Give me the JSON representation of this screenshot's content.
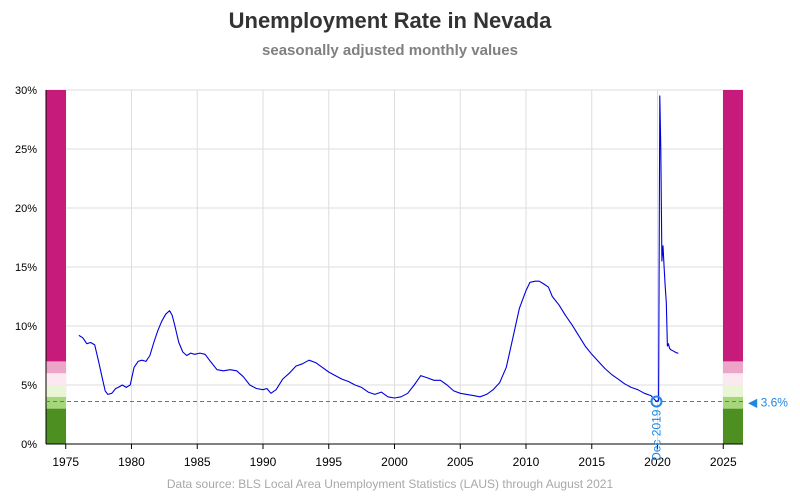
{
  "chart_data": {
    "type": "line",
    "title": "Unemployment Rate in Nevada",
    "subtitle": "seasonally adjusted monthly values",
    "source": "Data source: BLS Local Area Unemployment Statistics (LAUS) through August 2021",
    "xlabel": "",
    "ylabel": "",
    "xlim": [
      1973.5,
      2026.5
    ],
    "ylim": [
      0,
      30
    ],
    "x_ticks": [
      1975,
      1980,
      1985,
      1990,
      1995,
      2000,
      2005,
      2010,
      2015,
      2020,
      2025
    ],
    "y_ticks": [
      0,
      5,
      10,
      15,
      20,
      25,
      30
    ],
    "y_tick_labels": [
      "0%",
      "5%",
      "10%",
      "15%",
      "20%",
      "25%",
      "30%"
    ],
    "grid": true,
    "line_color": "#0000dd",
    "series": [
      {
        "x": [
          1976.0,
          1976.3,
          1976.6,
          1976.9,
          1977.2,
          1977.5,
          1977.8,
          1978.0,
          1978.2,
          1978.5,
          1978.8,
          1979.0,
          1979.3,
          1979.6,
          1979.9,
          1980.2,
          1980.5,
          1980.8,
          1981.1,
          1981.4,
          1981.7,
          1982.0,
          1982.3,
          1982.6,
          1982.9,
          1983.1,
          1983.3,
          1983.6,
          1983.9,
          1984.2,
          1984.5,
          1984.8,
          1985.2,
          1985.6,
          1986.0,
          1986.5,
          1987.0,
          1987.5,
          1988.0,
          1988.5,
          1989.0,
          1989.5,
          1990.0,
          1990.3,
          1990.6,
          1991.0,
          1991.5,
          1992.0,
          1992.5,
          1993.0,
          1993.5,
          1994.0,
          1994.5,
          1995.0,
          1995.5,
          1996.0,
          1996.5,
          1997.0,
          1997.5,
          1998.0,
          1998.5,
          1999.0,
          1999.5,
          2000.0,
          2000.5,
          2001.0,
          2001.5,
          2002.0,
          2002.5,
          2003.0,
          2003.5,
          2004.0,
          2004.5,
          2005.0,
          2005.5,
          2006.0,
          2006.5,
          2007.0,
          2007.5,
          2008.0,
          2008.5,
          2009.0,
          2009.5,
          2010.0,
          2010.3,
          2010.7,
          2011.0,
          2011.3,
          2011.7,
          2012.0,
          2012.5,
          2013.0,
          2013.5,
          2014.0,
          2014.5,
          2015.0,
          2015.5,
          2016.0,
          2016.5,
          2017.0,
          2017.5,
          2018.0,
          2018.5,
          2019.0,
          2019.5,
          2019.92,
          2020.08,
          2020.17,
          2020.25,
          2020.33,
          2020.42,
          2020.5,
          2020.58,
          2020.67,
          2020.75,
          2020.83,
          2020.92,
          2021.0,
          2021.17,
          2021.33,
          2021.5,
          2021.58
        ],
        "y": [
          9.2,
          9.0,
          8.5,
          8.6,
          8.4,
          7.0,
          5.5,
          4.5,
          4.2,
          4.3,
          4.7,
          4.8,
          5.0,
          4.8,
          5.0,
          6.5,
          7.0,
          7.1,
          7.0,
          7.5,
          8.6,
          9.6,
          10.4,
          11.0,
          11.3,
          10.9,
          10.0,
          8.6,
          7.8,
          7.5,
          7.7,
          7.6,
          7.7,
          7.6,
          7.0,
          6.3,
          6.2,
          6.3,
          6.2,
          5.7,
          5.0,
          4.7,
          4.6,
          4.7,
          4.3,
          4.6,
          5.5,
          6.0,
          6.6,
          6.8,
          7.1,
          6.9,
          6.5,
          6.1,
          5.8,
          5.5,
          5.3,
          5.0,
          4.8,
          4.4,
          4.2,
          4.4,
          4.0,
          3.9,
          4.0,
          4.3,
          5.0,
          5.8,
          5.6,
          5.4,
          5.4,
          5.0,
          4.5,
          4.3,
          4.2,
          4.1,
          4.0,
          4.2,
          4.6,
          5.2,
          6.5,
          9.0,
          11.5,
          13.0,
          13.7,
          13.8,
          13.8,
          13.6,
          13.3,
          12.5,
          11.8,
          10.9,
          10.1,
          9.2,
          8.3,
          7.6,
          7.0,
          6.4,
          5.9,
          5.5,
          5.1,
          4.8,
          4.6,
          4.3,
          4.1,
          3.6,
          3.7,
          29.5,
          25.0,
          15.5,
          16.8,
          15.0,
          13.5,
          12.0,
          8.3,
          8.5,
          8.1,
          8.0,
          7.9,
          7.8,
          7.7,
          7.7
        ]
      }
    ],
    "reference_line": {
      "value": 3.6,
      "label": "◀ 3.6%",
      "color": "#1e88e5"
    },
    "marker": {
      "x": 2019.92,
      "y": 3.6,
      "label": "Dec 2019"
    },
    "scale_bands": [
      {
        "from": 0,
        "to": 3,
        "color": "#4e8f22"
      },
      {
        "from": 3,
        "to": 4,
        "color": "#a6d67a"
      },
      {
        "from": 4,
        "to": 5,
        "color": "#eaf5d6"
      },
      {
        "from": 5,
        "to": 6,
        "color": "#fce8f0"
      },
      {
        "from": 6,
        "to": 7,
        "color": "#eca4c8"
      },
      {
        "from": 7,
        "to": 30,
        "color": "#c71b7b"
      }
    ]
  }
}
